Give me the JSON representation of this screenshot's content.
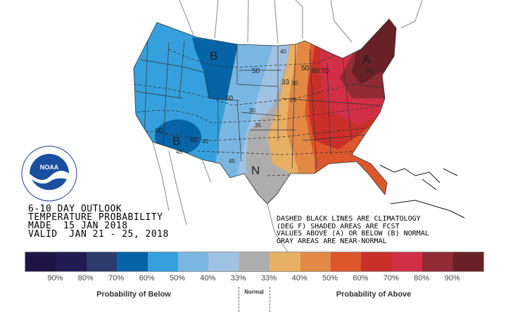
{
  "title_block": {
    "line1": "6-10 DAY OUTLOOK",
    "line2": "TEMPERATURE PROBABILITY",
    "line3": "MADE  15 JAN 2018",
    "line4": "VALID  JAN 21 - 25, 2018"
  },
  "note_block": {
    "line1": "DASHED BLACK LINES ARE CLIMATOLOGY",
    "line2": "(DEG F) SHADED AREAS ARE FCST",
    "line3": "VALUES ABOVE (A) OR BELOW (B) NORMAL",
    "line4": "GRAY AREAS ARE NEAR-NORMAL"
  },
  "logo": {
    "text": "NOAA",
    "ring_text": "NATIONAL OCEANIC AND ATMOSPHERIC ADMINISTRATION · U.S. DEPARTMENT OF COMMERCE"
  },
  "map_labels": {
    "b_north": "B",
    "b_south": "B",
    "n": "N",
    "a": "A",
    "c1": "50",
    "c2": "60",
    "c3": "60",
    "c4": "60",
    "c5": "40",
    "c6": "45",
    "c7": "45",
    "c8": "40",
    "c9": "33",
    "c10": "30",
    "c11": "35",
    "c12": "25",
    "c13": "50",
    "c14": "60",
    "c15": "70",
    "c16": "90",
    "c17": "30"
  },
  "legend": {
    "colors": [
      "#1e1545",
      "#231c52",
      "#2c3a6c",
      "#0563a6",
      "#35a0dd",
      "#79b6e2",
      "#9fc2e2",
      "#adadad",
      "#e8b064",
      "#e28946",
      "#dc572c",
      "#c9302a",
      "#d12f47",
      "#922b35",
      "#6a2027"
    ],
    "ticks": [
      "90%",
      "80%",
      "70%",
      "60%",
      "50%",
      "40%",
      "33%",
      "33%",
      "40%",
      "50%",
      "60%",
      "70%",
      "80%",
      "90%"
    ],
    "below_label": "Probability of Below",
    "normal_label": "Normal",
    "above_label": "Probability of Above"
  }
}
